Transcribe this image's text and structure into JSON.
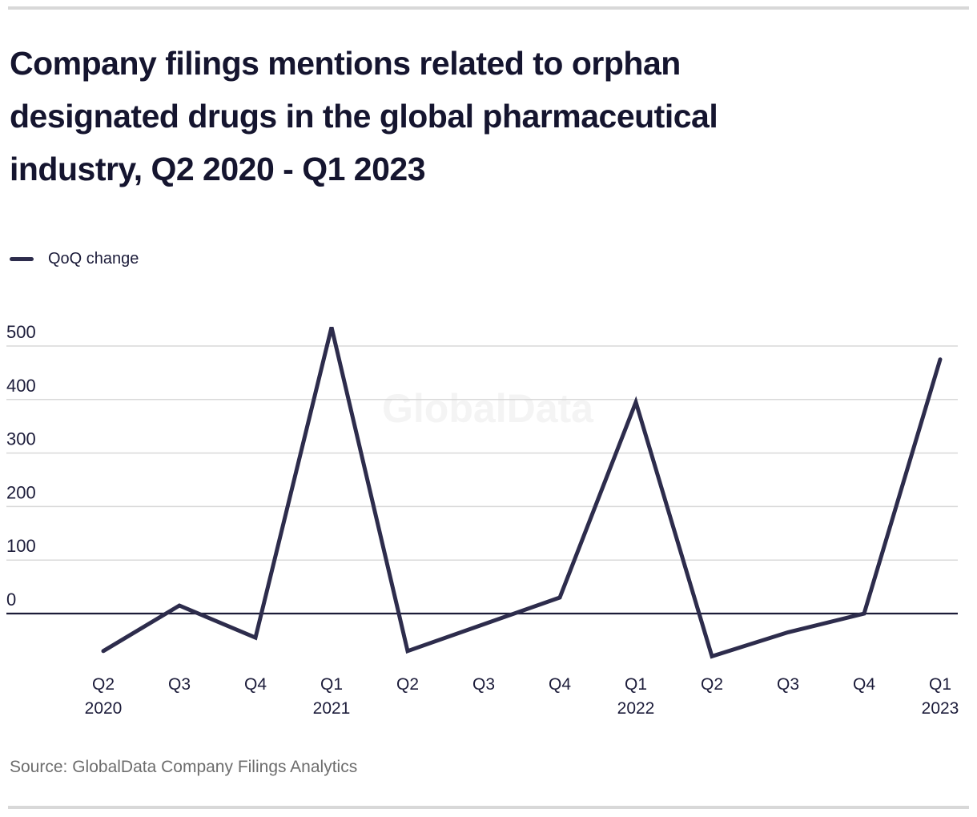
{
  "header": {
    "title_lines": [
      "Company filings mentions related to orphan",
      "designated drugs in the global pharmaceutical",
      "industry, Q2 2020 - Q1 2023"
    ]
  },
  "legend": {
    "label": "QoQ change"
  },
  "footer": {
    "source": "Source: GlobalData Company Filings Analytics"
  },
  "watermark": "GlobalData",
  "colors": {
    "line": "#2d2c4c",
    "zero_axis": "#1c1c38",
    "grid": "#d9d9d9",
    "tick_text": "#1c1c3a",
    "title_text": "#15152f",
    "source_text": "#6d6d6d",
    "watermark": "#f4f4f4",
    "rule": "#d8d8d8",
    "background": "#ffffff"
  },
  "chart_data": {
    "type": "line",
    "title": "Company filings mentions related to orphan designated drugs in the global pharmaceutical industry, Q2 2020 - Q1 2023",
    "categories": [
      "Q2 2020",
      "Q3 2020",
      "Q4 2020",
      "Q1 2021",
      "Q2 2021",
      "Q3 2021",
      "Q4 2021",
      "Q1 2022",
      "Q2 2022",
      "Q3 2022",
      "Q4 2022",
      "Q1 2023"
    ],
    "x_tick_labels": [
      "Q2",
      "Q3",
      "Q4",
      "Q1",
      "Q2",
      "Q3",
      "Q4",
      "Q1",
      "Q2",
      "Q3",
      "Q4",
      "Q1"
    ],
    "x_year_labels": [
      "2020",
      "",
      "",
      "2021",
      "",
      "",
      "",
      "2022",
      "",
      "",
      "",
      "2023"
    ],
    "series": [
      {
        "name": "QoQ change",
        "values": [
          -70,
          15,
          -45,
          535,
          -70,
          -20,
          30,
          395,
          -80,
          -35,
          0,
          475
        ]
      }
    ],
    "yticks": [
      0,
      100,
      200,
      300,
      400,
      500
    ],
    "ylim": [
      -100,
      560
    ],
    "xlabel": "",
    "ylabel": "",
    "grid": "horizontal-light",
    "legend_position": "top-left"
  }
}
